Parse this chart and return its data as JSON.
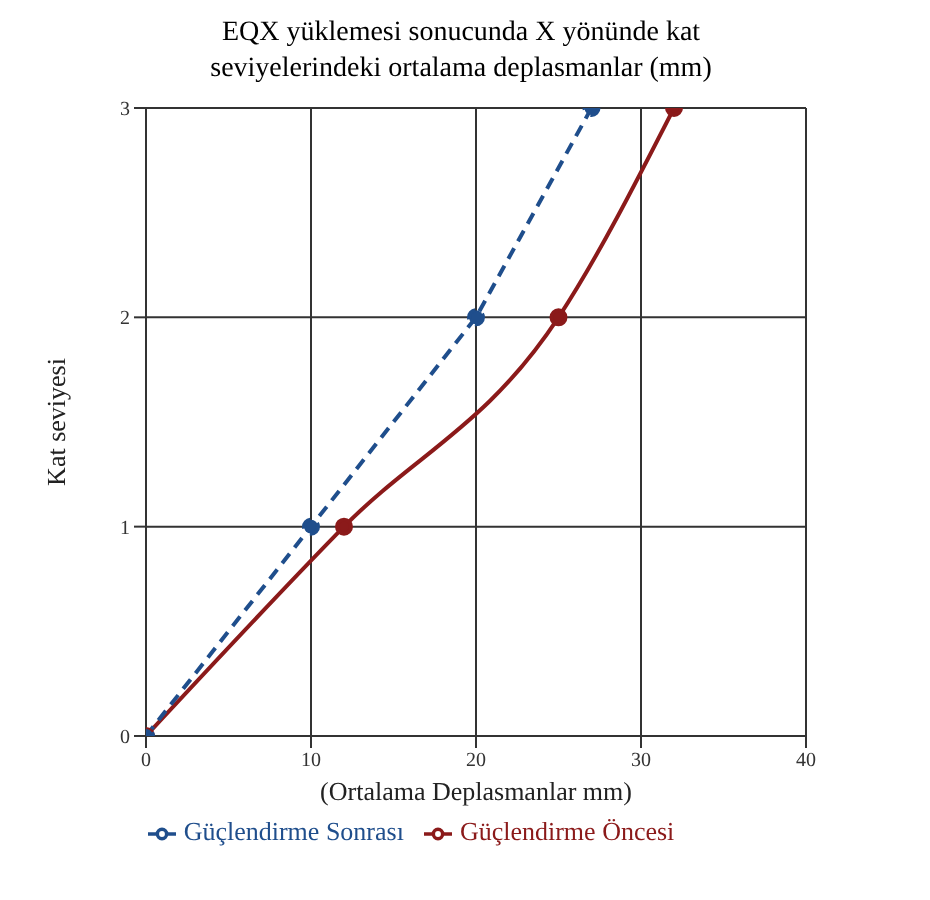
{
  "chart_data": {
    "type": "line",
    "title": "EQX yüklemesi sonucunda X yönünde kat seviyelerindeki ortalama deplasmanlar (mm)",
    "xlabel": "(Ortalama Deplasmanlar mm)",
    "ylabel": "Kat seviyesi",
    "xlim": [
      0,
      40
    ],
    "xticks": [
      0,
      10,
      20,
      30,
      40
    ],
    "ylim": [
      0,
      3
    ],
    "yticks": [
      0,
      1,
      2,
      3
    ],
    "grid": true,
    "legend": "bottom",
    "marker": "circle",
    "series": [
      {
        "name": "Güçlendirme Öncesi",
        "color": "#8b1a1a",
        "x": [
          0,
          12,
          25,
          32
        ],
        "values": [
          0,
          1,
          2,
          3
        ],
        "line_style": "solid"
      },
      {
        "name": "Güçlendirme Sonrası",
        "color": "#1f4e8c",
        "x": [
          0,
          10,
          20,
          27
        ],
        "values": [
          0,
          1,
          2,
          3
        ],
        "line_style": "dashed"
      }
    ]
  }
}
